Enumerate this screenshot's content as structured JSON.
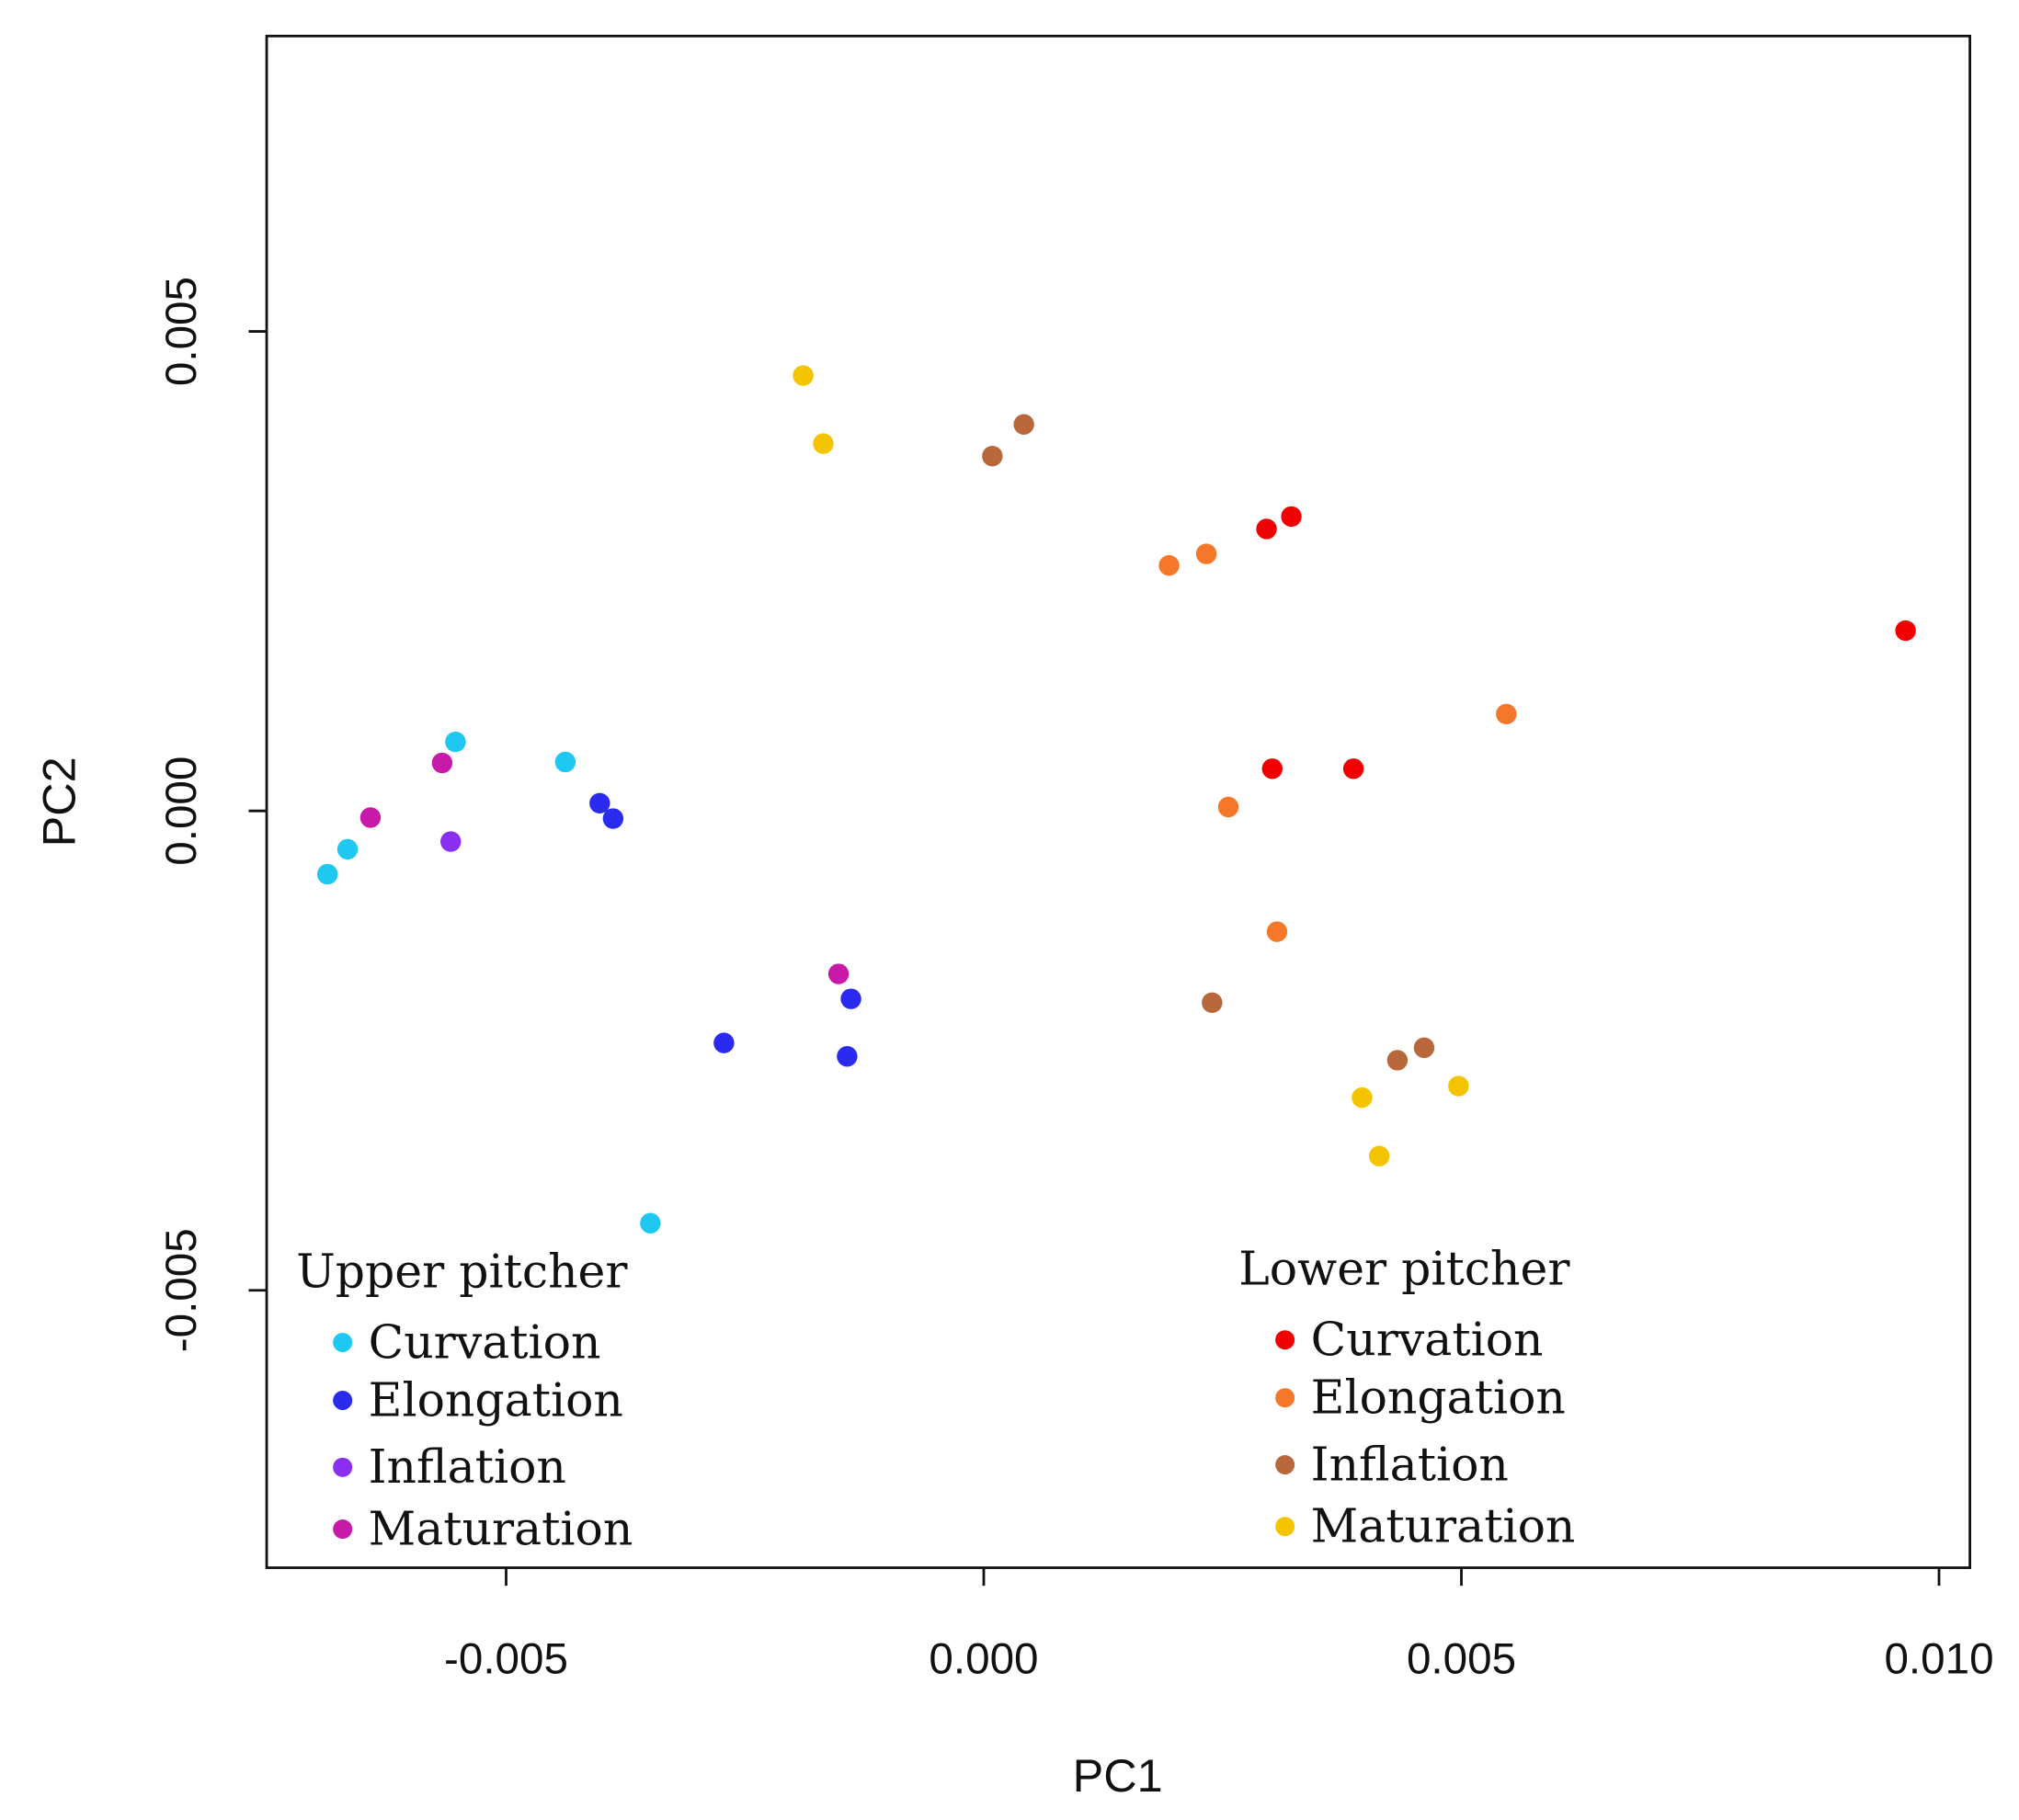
{
  "chart_data": {
    "type": "scatter",
    "title": "",
    "xlabel": "PC1",
    "ylabel": "PC2",
    "xlim": [
      -0.0075,
      0.0103
    ],
    "ylim": [
      -0.0079,
      0.0081
    ],
    "xticks": [
      -0.005,
      0.0,
      0.005,
      0.01
    ],
    "xtick_labels": [
      "-0.005",
      "0.000",
      "0.005",
      "0.010"
    ],
    "yticks": [
      -0.005,
      0.0,
      0.005
    ],
    "ytick_labels": [
      "-0.005",
      "0.000",
      "0.005"
    ],
    "grid": false,
    "legend_groups": [
      {
        "title": "Upper pitcher",
        "placement": "bottom-left",
        "series_indices": [
          0,
          1,
          2,
          3
        ]
      },
      {
        "title": "Lower pitcher",
        "placement": "bottom-right",
        "series_indices": [
          4,
          5,
          6,
          7
        ]
      }
    ],
    "series": [
      {
        "name": "Curvation",
        "group": "Upper pitcher",
        "color": "#1ec8f0",
        "points": [
          [
            -0.00553,
            0.00072
          ],
          [
            -0.00438,
            0.00051
          ],
          [
            -0.00666,
            -0.0004
          ],
          [
            -0.00687,
            -0.00066
          ],
          [
            -0.00349,
            -0.0043
          ]
        ]
      },
      {
        "name": "Elongation",
        "group": "Upper pitcher",
        "color": "#2a2af0",
        "points": [
          [
            -0.00402,
            8e-05
          ],
          [
            -0.00388,
            -8e-05
          ],
          [
            -0.00272,
            -0.00242
          ],
          [
            -0.00139,
            -0.00196
          ],
          [
            -0.00143,
            -0.00256
          ]
        ]
      },
      {
        "name": "Inflation",
        "group": "Upper pitcher",
        "color": "#8a2ef0",
        "points": [
          [
            -0.00558,
            -0.00032
          ]
        ]
      },
      {
        "name": "Maturation",
        "group": "Upper pitcher",
        "color": "#c81aa8",
        "points": [
          [
            -0.00567,
            0.0005
          ],
          [
            -0.00642,
            -7e-05
          ],
          [
            -0.00152,
            -0.0017
          ]
        ]
      },
      {
        "name": "Curvation",
        "group": "Lower pitcher",
        "color": "#f00000",
        "points": [
          [
            0.00296,
            0.00294
          ],
          [
            0.00322,
            0.00307
          ],
          [
            0.00965,
            0.00188
          ],
          [
            0.00302,
            0.00044
          ],
          [
            0.00387,
            0.00044
          ]
        ]
      },
      {
        "name": "Elongation",
        "group": "Lower pitcher",
        "color": "#f5782a",
        "points": [
          [
            0.00194,
            0.00256
          ],
          [
            0.00233,
            0.00268
          ],
          [
            0.00547,
            0.00101
          ],
          [
            0.00256,
            4e-05
          ],
          [
            0.00307,
            -0.00126
          ]
        ]
      },
      {
        "name": "Inflation",
        "group": "Lower pitcher",
        "color": "#b8683a",
        "points": [
          [
            9e-05,
            0.0037
          ],
          [
            0.00042,
            0.00403
          ],
          [
            0.00239,
            -0.002
          ],
          [
            0.00433,
            -0.0026
          ],
          [
            0.00461,
            -0.00247
          ]
        ]
      },
      {
        "name": "Maturation",
        "group": "Lower pitcher",
        "color": "#f5c400",
        "points": [
          [
            -0.00189,
            0.00454
          ],
          [
            -0.00168,
            0.00383
          ],
          [
            0.00396,
            -0.00299
          ],
          [
            0.00497,
            -0.00287
          ],
          [
            0.00414,
            -0.0036
          ]
        ]
      }
    ]
  }
}
